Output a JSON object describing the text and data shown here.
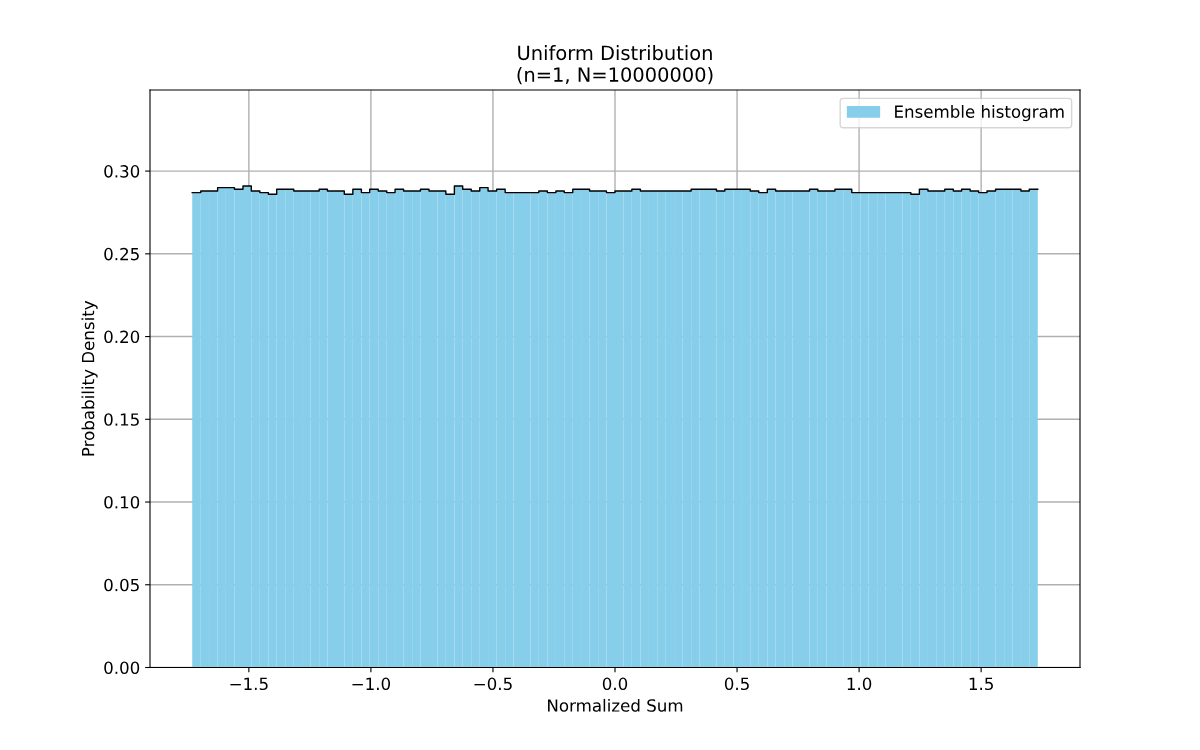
{
  "chart_data": {
    "type": "histogram",
    "title": "Uniform Distribution\n(n=1, N=10000000)",
    "xlabel": "Normalized Sum",
    "ylabel": "Probability Density",
    "bins": [
      -1.732,
      -1.697,
      -1.663,
      -1.628,
      -1.594,
      -1.559,
      -1.524,
      -1.49,
      -1.455,
      -1.42,
      -1.386,
      -1.351,
      -1.316,
      -1.282,
      -1.247,
      -1.212,
      -1.178,
      -1.143,
      -1.109,
      -1.074,
      -1.039,
      -1.005,
      -0.97,
      -0.935,
      -0.901,
      -0.866,
      -0.831,
      -0.797,
      -0.762,
      -0.727,
      -0.693,
      -0.658,
      -0.624,
      -0.589,
      -0.554,
      -0.52,
      -0.485,
      -0.45,
      -0.416,
      -0.381,
      -0.346,
      -0.312,
      -0.277,
      -0.242,
      -0.208,
      -0.173,
      -0.139,
      -0.104,
      -0.069,
      -0.035,
      0,
      0.035,
      0.069,
      0.104,
      0.139,
      0.173,
      0.208,
      0.242,
      0.277,
      0.312,
      0.346,
      0.381,
      0.416,
      0.45,
      0.485,
      0.52,
      0.554,
      0.589,
      0.624,
      0.658,
      0.693,
      0.727,
      0.762,
      0.797,
      0.831,
      0.866,
      0.901,
      0.935,
      0.97,
      1.005,
      1.039,
      1.074,
      1.109,
      1.143,
      1.178,
      1.212,
      1.247,
      1.282,
      1.316,
      1.351,
      1.386,
      1.42,
      1.455,
      1.49,
      1.524,
      1.559,
      1.594,
      1.628,
      1.663,
      1.697,
      1.732
    ],
    "series": [
      {
        "name": "Ensemble histogram",
        "color": "#87ceeb",
        "values": [
          0.287,
          0.288,
          0.288,
          0.29,
          0.29,
          0.289,
          0.291,
          0.288,
          0.287,
          0.286,
          0.289,
          0.289,
          0.288,
          0.288,
          0.288,
          0.289,
          0.288,
          0.288,
          0.286,
          0.289,
          0.287,
          0.289,
          0.288,
          0.287,
          0.289,
          0.288,
          0.288,
          0.289,
          0.288,
          0.288,
          0.286,
          0.291,
          0.289,
          0.288,
          0.29,
          0.288,
          0.289,
          0.287,
          0.287,
          0.287,
          0.287,
          0.288,
          0.287,
          0.288,
          0.287,
          0.289,
          0.289,
          0.288,
          0.288,
          0.287,
          0.288,
          0.288,
          0.289,
          0.288,
          0.288,
          0.288,
          0.288,
          0.288,
          0.288,
          0.289,
          0.289,
          0.289,
          0.288,
          0.289,
          0.289,
          0.289,
          0.288,
          0.287,
          0.289,
          0.288,
          0.288,
          0.288,
          0.288,
          0.289,
          0.288,
          0.288,
          0.289,
          0.289,
          0.287,
          0.287,
          0.287,
          0.287,
          0.287,
          0.287,
          0.287,
          0.286,
          0.289,
          0.288,
          0.288,
          0.289,
          0.288,
          0.289,
          0.288,
          0.287,
          0.288,
          0.289,
          0.289,
          0.289,
          0.288,
          0.289
        ]
      },
      {
        "type": "step",
        "color": "#000000",
        "x": [
          -1.732,
          -1.697,
          -1.663,
          -1.628,
          -1.594,
          -1.559,
          -1.524,
          -1.49,
          -1.455,
          -1.42,
          -1.386,
          -1.351,
          -1.316,
          -1.282,
          -1.247,
          -1.212,
          -1.178,
          -1.143,
          -1.109,
          -1.074,
          -1.039,
          -1.005,
          -0.97,
          -0.935,
          -0.901,
          -0.866,
          -0.831,
          -0.797,
          -0.762,
          -0.727,
          -0.693,
          -0.658,
          -0.624,
          -0.589,
          -0.554,
          -0.52,
          -0.485,
          -0.45,
          -0.416,
          -0.381,
          -0.346,
          -0.312,
          -0.277,
          -0.242,
          -0.208,
          -0.173,
          -0.139,
          -0.104,
          -0.069,
          -0.035,
          0,
          0.035,
          0.069,
          0.104,
          0.139,
          0.173,
          0.208,
          0.242,
          0.277,
          0.312,
          0.346,
          0.381,
          0.416,
          0.45,
          0.485,
          0.52,
          0.554,
          0.589,
          0.624,
          0.658,
          0.693,
          0.727,
          0.762,
          0.797,
          0.831,
          0.866,
          0.901,
          0.935,
          0.97,
          1.005,
          1.039,
          1.074,
          1.109,
          1.143,
          1.178,
          1.212,
          1.247,
          1.282,
          1.316,
          1.351,
          1.386,
          1.42,
          1.455,
          1.49,
          1.524,
          1.559,
          1.594,
          1.628,
          1.663,
          1.697,
          1.732
        ],
        "values": [
          0.287,
          0.288,
          0.288,
          0.29,
          0.29,
          0.289,
          0.291,
          0.288,
          0.287,
          0.286,
          0.289,
          0.289,
          0.288,
          0.288,
          0.288,
          0.289,
          0.288,
          0.288,
          0.286,
          0.289,
          0.287,
          0.289,
          0.288,
          0.287,
          0.289,
          0.288,
          0.288,
          0.289,
          0.288,
          0.288,
          0.286,
          0.291,
          0.289,
          0.288,
          0.29,
          0.288,
          0.289,
          0.287,
          0.287,
          0.287,
          0.287,
          0.288,
          0.287,
          0.288,
          0.287,
          0.289,
          0.289,
          0.288,
          0.288,
          0.287,
          0.288,
          0.288,
          0.289,
          0.288,
          0.288,
          0.288,
          0.288,
          0.288,
          0.288,
          0.289,
          0.289,
          0.289,
          0.288,
          0.289,
          0.289,
          0.289,
          0.288,
          0.287,
          0.289,
          0.288,
          0.288,
          0.288,
          0.288,
          0.289,
          0.288,
          0.288,
          0.289,
          0.289,
          0.287,
          0.287,
          0.287,
          0.287,
          0.287,
          0.287,
          0.287,
          0.286,
          0.289,
          0.288,
          0.288,
          0.289,
          0.288,
          0.289,
          0.288,
          0.287,
          0.288,
          0.289,
          0.289,
          0.289,
          0.288,
          0.289,
          0.289
        ]
      }
    ],
    "xlim": [
      -1.905,
      1.905
    ],
    "ylim": [
      0,
      0.349
    ],
    "xticks": [
      {
        "value": -1.5,
        "label": "−1.5"
      },
      {
        "value": -1.0,
        "label": "−1.0"
      },
      {
        "value": -0.5,
        "label": "−0.5"
      },
      {
        "value": 0,
        "label": "0.0"
      },
      {
        "value": 0.5,
        "label": "0.5"
      },
      {
        "value": 1.0,
        "label": "1.0"
      },
      {
        "value": 1.5,
        "label": "1.5"
      }
    ],
    "yticks": [
      {
        "value": 0,
        "label": "0.00"
      },
      {
        "value": 0.05,
        "label": "0.05"
      },
      {
        "value": 0.1,
        "label": "0.10"
      },
      {
        "value": 0.15,
        "label": "0.15"
      },
      {
        "value": 0.2,
        "label": "0.20"
      },
      {
        "value": 0.25,
        "label": "0.25"
      },
      {
        "value": 0.3,
        "label": "0.30"
      }
    ],
    "grid": true,
    "legend": "top right"
  }
}
